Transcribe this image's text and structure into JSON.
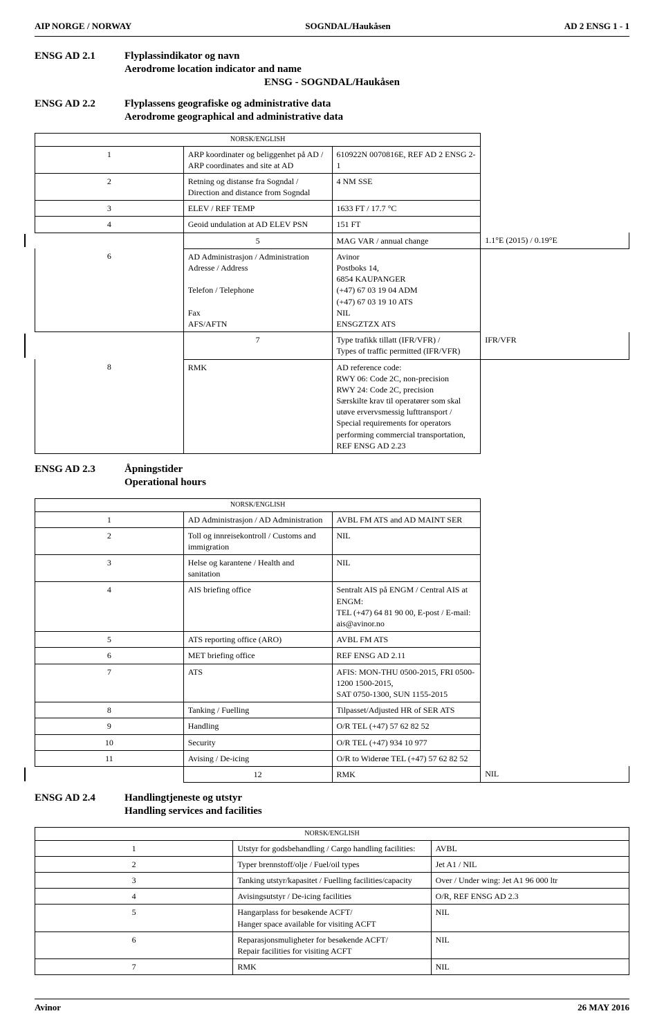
{
  "header": {
    "left": "AIP NORGE / NORWAY",
    "center": "SOGNDAL/Haukåsen",
    "right": "AD 2 ENSG 1 - 1"
  },
  "sections": {
    "s1": {
      "code": "ENSG AD 2.1",
      "title": "Flyplassindikator og navn",
      "subtitle": "Aerodrome location indicator and name",
      "center": "ENSG - SOGNDAL/Haukåsen"
    },
    "s2": {
      "code": "ENSG AD 2.2",
      "title": "Flyplassens geografiske og administrative data",
      "subtitle": "Aerodrome geographical and administrative data"
    },
    "s3": {
      "code": "ENSG AD 2.3",
      "title": "Åpningstider",
      "subtitle": "Operational hours"
    },
    "s4": {
      "code": "ENSG AD 2.4",
      "title": "Handlingtjeneste og utstyr",
      "subtitle": "Handling services and facilities"
    }
  },
  "caption": "NORSK/ENGLISH",
  "table1": {
    "r1": {
      "n": "1",
      "l1": "ARP koordinater og beliggenhet på AD /",
      "l2": "ARP coordinates and site at AD",
      "v": "610922N 0070816E, REF AD 2 ENSG 2-1"
    },
    "r2": {
      "n": "2",
      "l1": "Retning og distanse fra Sogndal /",
      "l2": "Direction and distance from Sogndal",
      "v": "4 NM SSE"
    },
    "r3": {
      "n": "3",
      "l": "ELEV / REF TEMP",
      "v": "1633 FT / 17.7 °C"
    },
    "r4": {
      "n": "4",
      "l": "Geoid undulation at AD ELEV PSN",
      "v": "151 FT"
    },
    "r5": {
      "n": "5",
      "l": "MAG VAR / annual change",
      "v": "1.1°E (2015) / 0.19°E"
    },
    "r6": {
      "n": "6",
      "l1": "AD Administrasjon / Administration",
      "l2": "Adresse / Address",
      "l3": "Telefon / Telephone",
      "l4": "Fax",
      "l5": "AFS/AFTN",
      "v1": "Avinor",
      "v2": "Postboks 14,",
      "v3": "6854 KAUPANGER",
      "v4": "(+47) 67 03 19 04 ADM",
      "v5": "(+47) 67 03 19 10 ATS",
      "v6": "NIL",
      "v7": "ENSGZTZX ATS"
    },
    "r7": {
      "n": "7",
      "l1": "Type trafikk tillatt (IFR/VFR) /",
      "l2": "Types of traffic permitted (IFR/VFR)",
      "v": "IFR/VFR"
    },
    "r8": {
      "n": "8",
      "l": "RMK",
      "v1": "AD reference code:",
      "v2": "RWY 06: Code 2C, non-precision",
      "v3": "RWY 24: Code 2C, precision",
      "v4": "Særskilte krav til operatører som skal utøve ervervsmessig lufttransport /",
      "v5": "Special requirements for operators performing commercial transportation,",
      "v6": "REF ENSG AD 2.23"
    }
  },
  "table2": {
    "r1": {
      "n": "1",
      "l": "AD Administrasjon / AD Administration",
      "v": "AVBL FM ATS and AD MAINT SER"
    },
    "r2": {
      "n": "2",
      "l": "Toll og innreisekontroll / Customs and immigration",
      "v": "NIL"
    },
    "r3": {
      "n": "3",
      "l": "Helse og karantene / Health and sanitation",
      "v": "NIL"
    },
    "r4": {
      "n": "4",
      "l": "AIS briefing office",
      "v1": "Sentralt AIS på ENGM / Central AIS at ENGM:",
      "v2": "TEL (+47) 64 81 90 00, E-post / E-mail: ais@avinor.no"
    },
    "r5": {
      "n": "5",
      "l": "ATS reporting office (ARO)",
      "v": "AVBL FM ATS"
    },
    "r6": {
      "n": "6",
      "l": "MET briefing office",
      "v": "REF ENSG AD 2.11"
    },
    "r7": {
      "n": "7",
      "l": "ATS",
      "v1": "AFIS:  MON-THU 0500-2015, FRI 0500-1200 1500-2015,",
      "v2": "SAT 0750-1300, SUN 1155-2015"
    },
    "r8": {
      "n": "8",
      "l": "Tanking / Fuelling",
      "v": "Tilpasset/Adjusted HR of SER ATS"
    },
    "r9": {
      "n": "9",
      "l": "Handling",
      "v": "O/R TEL (+47) 57 62 82 52"
    },
    "r10": {
      "n": "10",
      "l": "Security",
      "v": "O/R TEL (+47) 934 10 977"
    },
    "r11": {
      "n": "11",
      "l": "Avising / De-icing",
      "v": "O/R to Widerøe TEL (+47) 57 62 82 52"
    },
    "r12": {
      "n": "12",
      "l": "RMK",
      "v": "NIL"
    }
  },
  "table3": {
    "r1": {
      "n": "1",
      "l": "Utstyr for godsbehandling / Cargo handling facilities:",
      "v": "AVBL"
    },
    "r2": {
      "n": "2",
      "l": "Typer brennstoff/olje / Fuel/oil types",
      "v": "Jet A1 / NIL"
    },
    "r3": {
      "n": "3",
      "l": "Tanking utstyr/kapasitet / Fuelling facilities/capacity",
      "v": "Over / Under wing: Jet A1 96 000 ltr"
    },
    "r4": {
      "n": "4",
      "l": "Avisingsutstyr / De-icing facilities",
      "v": "O/R, REF ENSG AD 2.3"
    },
    "r5": {
      "n": "5",
      "l1": "Hangarplass for besøkende ACFT/",
      "l2": "Hanger space available for visiting ACFT",
      "v": "NIL"
    },
    "r6": {
      "n": "6",
      "l1": "Reparasjonsmuligheter for besøkende ACFT/",
      "l2": "Repair facilities for visiting ACFT",
      "v": "NIL"
    },
    "r7": {
      "n": "7",
      "l": "RMK",
      "v": "NIL"
    }
  },
  "footer": {
    "left": "Avinor",
    "right": "26 MAY 2016"
  }
}
